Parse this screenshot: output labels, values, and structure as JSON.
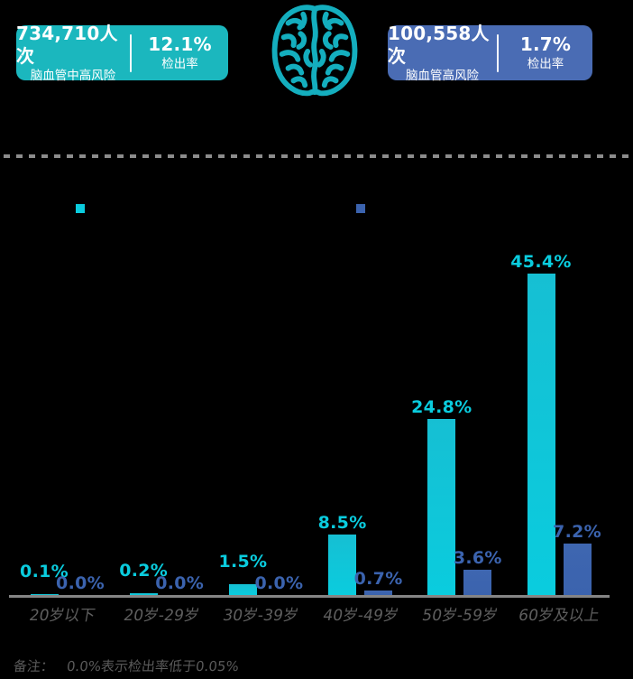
{
  "header": {
    "left_card": {
      "bg": "#1bb7be",
      "count": "734,710人次",
      "count_label": "脑血管中高风险",
      "rate": "12.1%",
      "rate_label": "检出率"
    },
    "right_card": {
      "bg": "#4a6cb4",
      "count": "100,558人次",
      "count_label": "脑血管高风险",
      "rate": "1.7%",
      "rate_label": "检出率"
    },
    "brain_icon_color": "#14aebe"
  },
  "legend": {
    "markers": [
      {
        "color": "#0accde"
      },
      {
        "color": "#3b63ae"
      }
    ]
  },
  "chart_data": {
    "type": "bar",
    "categories": [
      "20岁以下",
      "20岁-29岁",
      "30岁-39岁",
      "40岁-49岁",
      "50岁-59岁",
      "60岁及以上"
    ],
    "series": [
      {
        "color": "#0accde",
        "color_top": "#16bfd3",
        "values": [
          0.1,
          0.2,
          1.5,
          8.5,
          24.8,
          45.4
        ],
        "labels": [
          "0.1%",
          "0.2%",
          "1.5%",
          "8.5%",
          "24.8%",
          "45.4%"
        ]
      },
      {
        "color": "#3b63ae",
        "color_top": "#3e66b0",
        "values": [
          0.0,
          0.0,
          0.0,
          0.7,
          3.6,
          7.2
        ],
        "labels": [
          "0.0%",
          "0.0%",
          "0.0%",
          "0.7%",
          "3.6%",
          "7.2%"
        ]
      }
    ],
    "xlabel": "",
    "ylabel": "",
    "ylim": [
      0,
      50
    ],
    "grid": false,
    "value_labels_shown": true,
    "legend_position": "top-left-of-plot"
  },
  "note": {
    "prefix": "备注：",
    "text": "0.0%表示检出率低于0.05%"
  },
  "colors": {
    "background": "#000000",
    "axis": "#858585",
    "category_label": "#5e5e5e",
    "note_text": "#5a5a5a",
    "dashed_divider": "#8c8c8c"
  }
}
